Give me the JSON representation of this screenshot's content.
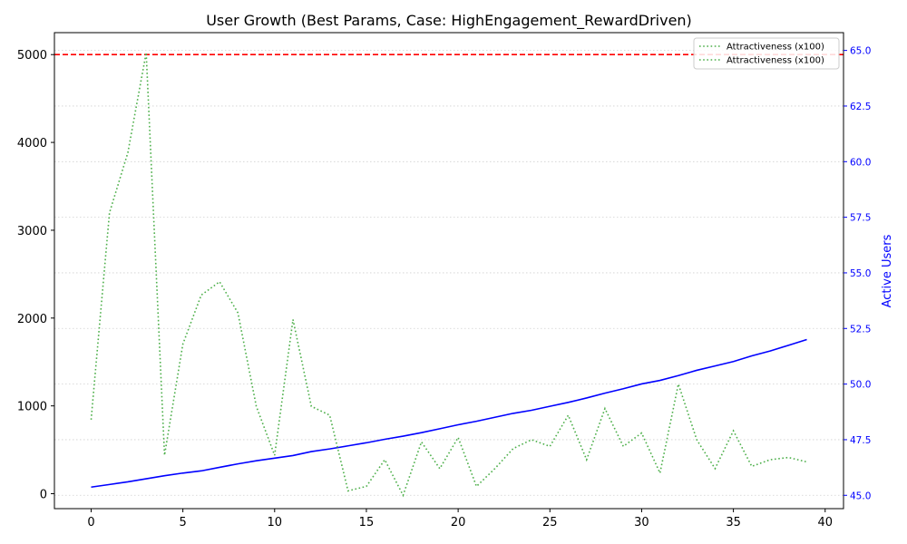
{
  "chart_data": {
    "type": "line",
    "title": "User Growth (Best Params, Case: HighEngagement_RewardDriven)",
    "xlabel": "",
    "ylabel_left": "",
    "ylabel_right": "Active Users",
    "x": [
      0,
      1,
      2,
      3,
      4,
      5,
      6,
      7,
      8,
      9,
      10,
      11,
      12,
      13,
      14,
      15,
      16,
      17,
      18,
      19,
      20,
      21,
      22,
      23,
      24,
      25,
      26,
      27,
      28,
      29,
      30,
      31,
      32,
      33,
      34,
      35,
      36,
      37,
      38,
      39
    ],
    "xlim": [
      -2,
      41
    ],
    "xticks": [
      0,
      5,
      10,
      15,
      20,
      25,
      30,
      35,
      40
    ],
    "ylim_left": [
      -170,
      5250
    ],
    "yticks_left": [
      0,
      1000,
      2000,
      3000,
      4000,
      5000
    ],
    "ylim_right": [
      44.4,
      65.8
    ],
    "yticks_right": [
      45.0,
      47.5,
      50.0,
      52.5,
      55.0,
      57.5,
      60.0,
      62.5,
      65.0
    ],
    "right_tick_labels": [
      "45.0",
      "47.5",
      "50.0",
      "52.5",
      "55.0",
      "57.5",
      "60.0",
      "62.5",
      "65.0"
    ],
    "grid": "right-axis horizontal dotted",
    "legend_position": "top-right",
    "legend": [
      {
        "label": "Attractiveness (x100)",
        "color": "#4daf4a",
        "style": "dotted"
      },
      {
        "label": "Attractiveness (x100)",
        "color": "#4daf4a",
        "style": "dotted"
      }
    ],
    "hline": {
      "axis": "left",
      "y": 5000,
      "color": "#ff0000",
      "style": "dashed"
    },
    "series": [
      {
        "axis": "left",
        "color": "#0000ff",
        "style": "solid",
        "values": [
          75,
          105,
          135,
          170,
          205,
          235,
          260,
          300,
          340,
          375,
          405,
          435,
          480,
          510,
          545,
          580,
          620,
          655,
          695,
          740,
          785,
          825,
          870,
          915,
          950,
          995,
          1040,
          1090,
          1145,
          1195,
          1250,
          1290,
          1345,
          1405,
          1455,
          1505,
          1570,
          1625,
          1690,
          1755
        ]
      },
      {
        "axis": "right",
        "color": "#4daf4a",
        "style": "dotted",
        "values": [
          48.4,
          57.7,
          60.4,
          64.9,
          46.8,
          51.8,
          54.0,
          54.6,
          53.2,
          49.0,
          46.8,
          52.9,
          49.0,
          48.6,
          45.2,
          45.4,
          46.6,
          45.0,
          47.4,
          46.2,
          47.6,
          45.4,
          46.2,
          47.1,
          47.5,
          47.2,
          48.6,
          46.6,
          48.9,
          47.2,
          47.8,
          46.0,
          50.0,
          47.5,
          46.2,
          47.9,
          46.3,
          46.6,
          46.7,
          46.5
        ]
      }
    ]
  }
}
